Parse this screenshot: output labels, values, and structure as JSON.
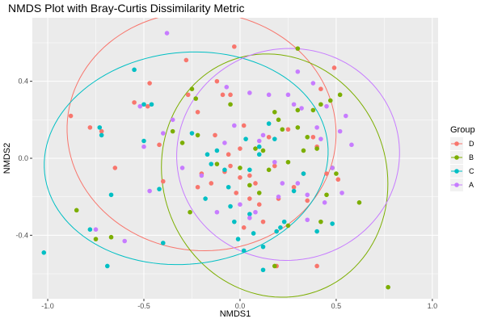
{
  "chart_data": {
    "type": "scatter",
    "title": "NMDS Plot with Bray-Curtis Dissimilarity Metric",
    "xlabel": "NMDS1",
    "ylabel": "NMDS2",
    "xlim": [
      -1.08,
      1.03
    ],
    "ylim": [
      -0.73,
      0.73
    ],
    "x_ticks": [
      -1.0,
      -0.5,
      0.0,
      0.5,
      1.0
    ],
    "x_tick_labels": [
      "-1.0",
      "-0.5",
      "0.0",
      "0.5",
      "1.0"
    ],
    "y_ticks": [
      -0.4,
      0.0,
      0.4
    ],
    "y_tick_labels": [
      "-0.4",
      "0.0",
      "0.4"
    ],
    "grid": true,
    "legend": {
      "title": "Group",
      "position": "right",
      "entries": [
        "D",
        "B",
        "C",
        "A"
      ]
    },
    "series": [
      {
        "name": "D",
        "color": "#F8766D",
        "points": [
          [
            -0.88,
            0.22
          ],
          [
            -0.78,
            0.16
          ],
          [
            -0.72,
            0.14
          ],
          [
            -0.65,
            -0.05
          ],
          [
            -0.55,
            0.29
          ],
          [
            -0.47,
            0.39
          ],
          [
            -0.48,
            0.27
          ],
          [
            -0.42,
            0.07
          ],
          [
            -0.4,
            -0.12
          ],
          [
            -0.28,
            0.51
          ],
          [
            -0.27,
            0.33
          ],
          [
            -0.22,
            0.24
          ],
          [
            -0.2,
            -0.08
          ],
          [
            -0.22,
            -0.15
          ],
          [
            -0.15,
            -0.13
          ],
          [
            -0.13,
            0.12
          ],
          [
            -0.12,
            0.4
          ],
          [
            -0.09,
            0.33
          ],
          [
            -0.08,
            -0.07
          ],
          [
            -0.06,
            0.02
          ],
          [
            -0.05,
            0.33
          ],
          [
            -0.02,
            -0.18
          ],
          [
            0.0,
            0.05
          ],
          [
            0.02,
            0.17
          ],
          [
            0.02,
            -0.36
          ],
          [
            0.05,
            -0.09
          ],
          [
            0.05,
            -0.21
          ],
          [
            0.08,
            -0.13
          ],
          [
            0.1,
            -0.24
          ],
          [
            0.12,
            -0.33
          ],
          [
            0.15,
            0.11
          ],
          [
            0.18,
            -0.04
          ],
          [
            0.2,
            -0.21
          ],
          [
            0.25,
            0.15
          ],
          [
            0.28,
            -0.15
          ],
          [
            0.33,
            -0.08
          ],
          [
            0.35,
            -0.22
          ],
          [
            0.38,
            0.11
          ],
          [
            0.4,
            0.06
          ],
          [
            0.42,
            0.36
          ],
          [
            0.45,
            -0.08
          ],
          [
            0.49,
            0.47
          ],
          [
            0.51,
            -0.11
          ],
          [
            0.4,
            -0.56
          ],
          [
            0.19,
            -0.56
          ],
          [
            -0.05,
            -0.04
          ],
          [
            0.0,
            -0.1
          ],
          [
            -0.03,
            0.58
          ]
        ]
      },
      {
        "name": "B",
        "color": "#7CAE00",
        "points": [
          [
            -0.85,
            -0.27
          ],
          [
            -0.75,
            -0.42
          ],
          [
            -0.67,
            -0.41
          ],
          [
            -0.35,
            0.14
          ],
          [
            -0.3,
            0.08
          ],
          [
            -0.26,
            -0.28
          ],
          [
            -0.25,
            0.36
          ],
          [
            -0.23,
            0.31
          ],
          [
            -0.22,
            0.12
          ],
          [
            -0.12,
            -0.03
          ],
          [
            -0.05,
            0.28
          ],
          [
            0.0,
            -0.05
          ],
          [
            0.05,
            -0.14
          ],
          [
            0.08,
            0.05
          ],
          [
            0.1,
            -0.18
          ],
          [
            0.12,
            0.04
          ],
          [
            0.15,
            -0.06
          ],
          [
            0.18,
            0.24
          ],
          [
            0.2,
            0.2
          ],
          [
            0.22,
            0.15
          ],
          [
            0.25,
            -0.02
          ],
          [
            0.25,
            -0.35
          ],
          [
            0.3,
            0.16
          ],
          [
            0.3,
            0.25
          ],
          [
            0.33,
            0.04
          ],
          [
            0.35,
            0.11
          ],
          [
            0.38,
            0.25
          ],
          [
            0.4,
            0.05
          ],
          [
            0.42,
            0.28
          ],
          [
            0.45,
            -0.19
          ],
          [
            0.47,
            0.3
          ],
          [
            0.48,
            -0.05
          ],
          [
            0.5,
            -0.08
          ],
          [
            0.52,
            0.33
          ],
          [
            0.62,
            -0.23
          ],
          [
            0.77,
            -0.67
          ],
          [
            0.18,
            -0.56
          ],
          [
            0.42,
            -0.33
          ],
          [
            0.3,
            0.57
          ]
        ]
      },
      {
        "name": "C",
        "color": "#00BFC4",
        "points": [
          [
            -1.02,
            -0.49
          ],
          [
            -0.78,
            -0.37
          ],
          [
            -0.73,
            0.16
          ],
          [
            -0.72,
            0.12
          ],
          [
            -0.69,
            -0.56
          ],
          [
            -0.67,
            -0.19
          ],
          [
            -0.55,
            0.46
          ],
          [
            -0.5,
            0.09
          ],
          [
            -0.5,
            0.28
          ],
          [
            -0.46,
            0.28
          ],
          [
            -0.42,
            -0.16
          ],
          [
            -0.4,
            -0.44
          ],
          [
            -0.25,
            0.13
          ],
          [
            -0.17,
            0.02
          ],
          [
            -0.15,
            -0.03
          ],
          [
            -0.12,
            0.04
          ],
          [
            -0.08,
            -0.06
          ],
          [
            -0.06,
            -0.15
          ],
          [
            -0.05,
            -0.25
          ],
          [
            -0.03,
            -0.33
          ],
          [
            -0.01,
            -0.42
          ],
          [
            0.02,
            -0.48
          ],
          [
            0.03,
            0.1
          ],
          [
            0.05,
            -0.06
          ],
          [
            0.07,
            -0.39
          ],
          [
            0.1,
            0.06
          ],
          [
            0.1,
            0.02
          ],
          [
            0.12,
            -0.46
          ],
          [
            0.15,
            0.18
          ],
          [
            0.18,
            0.1
          ],
          [
            0.19,
            -0.38
          ],
          [
            0.21,
            -0.36
          ],
          [
            0.23,
            -0.33
          ],
          [
            0.28,
            -0.17
          ],
          [
            0.33,
            -0.08
          ],
          [
            0.4,
            -0.38
          ],
          [
            0.48,
            -0.34
          ],
          [
            0.12,
            -0.58
          ],
          [
            0.05,
            -0.29
          ],
          [
            -0.18,
            -0.21
          ]
        ]
      },
      {
        "name": "A",
        "color": "#C77CFF",
        "points": [
          [
            -0.75,
            -0.37
          ],
          [
            -0.6,
            -0.43
          ],
          [
            -0.52,
            0.27
          ],
          [
            -0.5,
            0.06
          ],
          [
            -0.47,
            -0.17
          ],
          [
            -0.4,
            0.13
          ],
          [
            -0.38,
            0.65
          ],
          [
            -0.35,
            0.2
          ],
          [
            -0.3,
            -0.05
          ],
          [
            -0.2,
            -0.09
          ],
          [
            -0.12,
            -0.28
          ],
          [
            -0.08,
            0.08
          ],
          [
            -0.07,
            0.37
          ],
          [
            -0.03,
            0.17
          ],
          [
            0.0,
            -0.24
          ],
          [
            0.05,
            0.34
          ],
          [
            0.05,
            -0.31
          ],
          [
            0.08,
            -0.28
          ],
          [
            0.1,
            0.09
          ],
          [
            0.12,
            0.12
          ],
          [
            0.15,
            0.33
          ],
          [
            0.18,
            -0.02
          ],
          [
            0.2,
            -0.2
          ],
          [
            0.22,
            -0.13
          ],
          [
            0.25,
            0.33
          ],
          [
            0.28,
            0.28
          ],
          [
            0.3,
            -0.13
          ],
          [
            0.32,
            0.26
          ],
          [
            0.35,
            -0.19
          ],
          [
            0.38,
            0.39
          ],
          [
            0.4,
            0.16
          ],
          [
            0.42,
            0.1
          ],
          [
            0.44,
            -0.23
          ],
          [
            0.45,
            0.27
          ],
          [
            0.48,
            -0.05
          ],
          [
            0.52,
            0.14
          ],
          [
            0.55,
            0.22
          ],
          [
            0.58,
            0.07
          ],
          [
            0.53,
            -0.18
          ],
          [
            0.35,
            -0.32
          ],
          [
            0.3,
            0.45
          ]
        ]
      }
    ],
    "ellipses": [
      {
        "group": "D",
        "color": "#F8766D",
        "cx": -0.2,
        "cy": 0.14,
        "rx": 0.7,
        "ry": 0.62,
        "angle_deg": -5
      },
      {
        "group": "B",
        "color": "#7CAE00",
        "cx": 0.18,
        "cy": -0.09,
        "rx": 0.58,
        "ry": 0.64,
        "angle_deg": 22
      },
      {
        "group": "C",
        "color": "#00BFC4",
        "cx": -0.28,
        "cy": 0.0,
        "rx": 0.74,
        "ry": 0.55,
        "angle_deg": 6
      },
      {
        "group": "A",
        "color": "#C77CFF",
        "cx": 0.25,
        "cy": 0.02,
        "rx": 0.58,
        "ry": 0.55,
        "angle_deg": 8
      }
    ]
  }
}
